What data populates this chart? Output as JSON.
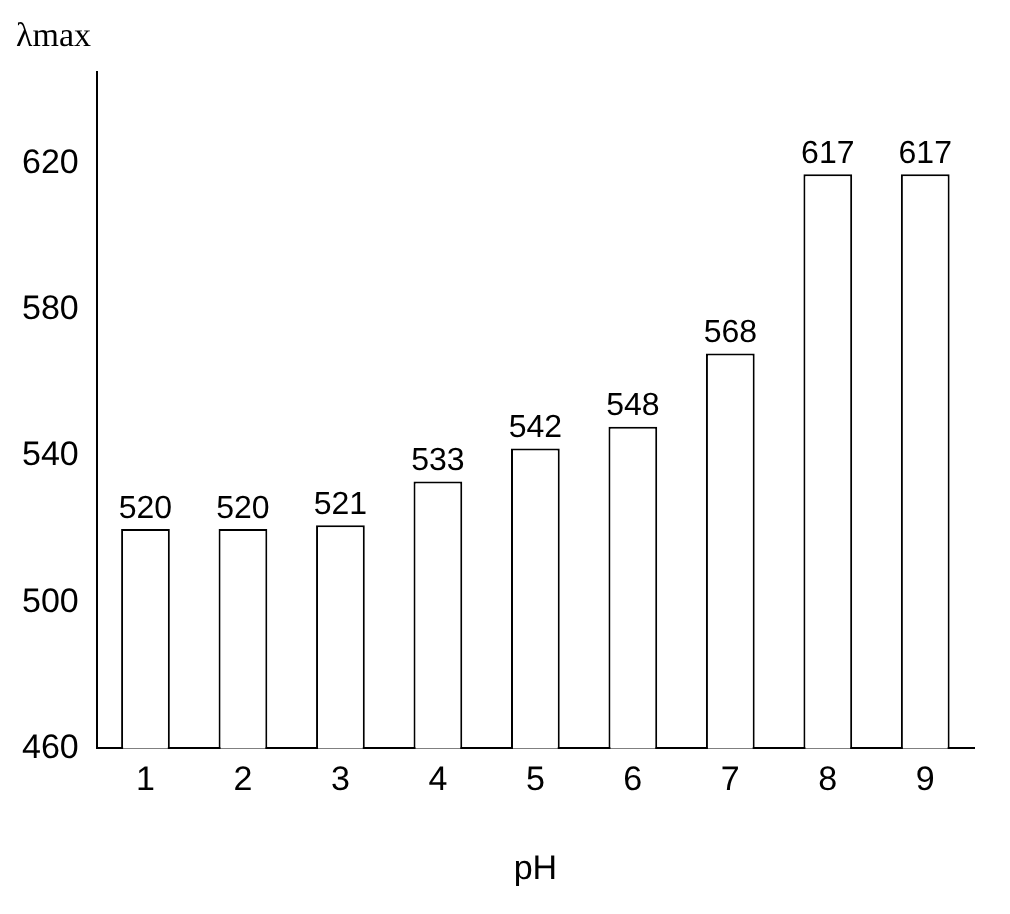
{
  "chart_data": {
    "type": "bar",
    "xlabel": "pH",
    "ylabel": "λmax",
    "categories": [
      "1",
      "2",
      "3",
      "4",
      "5",
      "6",
      "7",
      "8",
      "9"
    ],
    "values": [
      520,
      520,
      521,
      533,
      542,
      548,
      568,
      617,
      617
    ],
    "color": "#ffffff",
    "ylim": [
      460,
      645
    ],
    "yticks": [
      460,
      500,
      540,
      580,
      620
    ],
    "data_labels": true,
    "grid": false,
    "legend": false
  }
}
